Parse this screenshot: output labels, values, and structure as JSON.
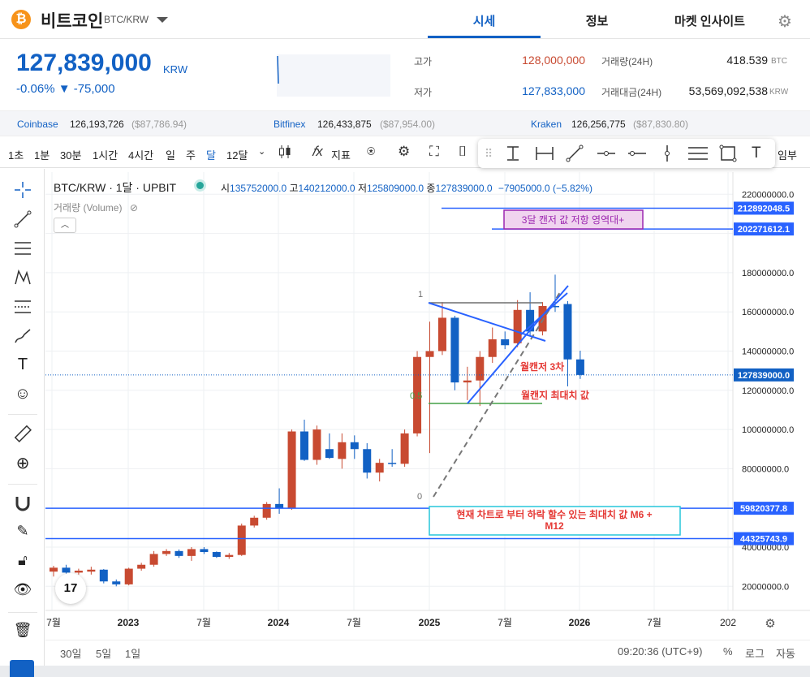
{
  "header": {
    "coin_symbol": "₿",
    "coin_name": "비트코인",
    "pair": "BTC/KRW",
    "tabs": [
      {
        "label": "시세",
        "active": true
      },
      {
        "label": "정보",
        "active": false
      },
      {
        "label": "마켓 인사이트",
        "active": false
      }
    ]
  },
  "price": {
    "current": "127,839,000",
    "unit": "KRW",
    "change": "-0.06% ▼ -75,000"
  },
  "stats": {
    "high_label": "고가",
    "high_value": "128,000,000",
    "low_label": "저가",
    "low_value": "127,833,000",
    "vol_label": "거래량(24H)",
    "vol_value": "418.539",
    "vol_unit": "BTC",
    "amt_label": "거래대금(24H)",
    "amt_value": "53,569,092,538",
    "amt_unit": "KRW"
  },
  "exchanges": [
    {
      "name": "Coinbase",
      "value": "126,193,726",
      "usd": "($87,786.94)"
    },
    {
      "name": "Bitfinex",
      "value": "126,433,875",
      "usd": "($87,954.00)"
    },
    {
      "name": "Kraken",
      "value": "126,256,775",
      "usd": "($87,830.80)"
    }
  ],
  "toolbar": {
    "intervals": [
      "1초",
      "1분",
      "30분",
      "1시간",
      "4시간",
      "일",
      "주",
      "달",
      "12달"
    ],
    "active_interval": "달",
    "indicator_label": "지표",
    "trailing": "임부"
  },
  "chart": {
    "title": "BTC/KRW · 1달 · UPBIT",
    "ohlc_o_label": "시",
    "ohlc_o": "135752000.0",
    "ohlc_h_label": "고",
    "ohlc_h": "140212000.0",
    "ohlc_l_label": "저",
    "ohlc_l": "125809000.0",
    "ohlc_c_label": "종",
    "ohlc_c": "127839000.0",
    "ohlc_change": "−7905000.0 (−5.82%)",
    "volume_label": "거래량 (Volume)",
    "annotations": {
      "resistance_box": "3달 캔저 값 저항 영역대+",
      "low3": "월캔저 3차",
      "max_low": "월캔지 최대치 값",
      "bottom_box": "현재 차트로 부터 하락 할수 있는 최대치 값 M6 + M12",
      "fib_1": "1",
      "fib_05": "0.5",
      "fib_0": "0"
    },
    "x_labels": [
      "7월",
      "2023",
      "7월",
      "2024",
      "7월",
      "2025",
      "7월",
      "2026",
      "7월",
      "202"
    ],
    "price_ticks": [
      "220000000.0",
      "180000000.0",
      "160000000.0",
      "140000000.0",
      "120000000.0",
      "100000000.0",
      "80000000.0",
      "40000000.0",
      "20000000.0"
    ],
    "price_tags": [
      {
        "value": "212892048.5",
        "color": "#2962ff"
      },
      {
        "value": "202271612.1",
        "color": "#2962ff"
      },
      {
        "value": "127839000.0",
        "color": "#1261c4"
      },
      {
        "value": "59820377.8",
        "color": "#2962ff"
      },
      {
        "value": "44325743.9",
        "color": "#2962ff"
      }
    ]
  },
  "chart_data": {
    "type": "candlestick",
    "title": "BTC/KRW · 1달 · UPBIT",
    "colors": {
      "up": "#c84a31",
      "down": "#1261c4"
    },
    "ylim": [
      0,
      230000000
    ],
    "candles": [
      {
        "o": 27500000,
        "h": 30500000,
        "l": 25000000,
        "c": 29500000
      },
      {
        "o": 29500000,
        "h": 31000000,
        "l": 26500000,
        "c": 27000000
      },
      {
        "o": 27000000,
        "h": 29000000,
        "l": 26000000,
        "c": 28000000
      },
      {
        "o": 27500000,
        "h": 30000000,
        "l": 26000000,
        "c": 28500000
      },
      {
        "o": 28500000,
        "h": 28800000,
        "l": 21500000,
        "c": 22500000
      },
      {
        "o": 22500000,
        "h": 23500000,
        "l": 20000000,
        "c": 21000000
      },
      {
        "o": 21000000,
        "h": 29500000,
        "l": 20500000,
        "c": 29000000
      },
      {
        "o": 29000000,
        "h": 32000000,
        "l": 28000000,
        "c": 31000000
      },
      {
        "o": 31000000,
        "h": 38000000,
        "l": 30000000,
        "c": 36500000
      },
      {
        "o": 36500000,
        "h": 39000000,
        "l": 35500000,
        "c": 38000000
      },
      {
        "o": 38000000,
        "h": 38800000,
        "l": 34500000,
        "c": 35500000
      },
      {
        "o": 35500000,
        "h": 40000000,
        "l": 33000000,
        "c": 39000000
      },
      {
        "o": 39000000,
        "h": 40000000,
        "l": 36500000,
        "c": 37500000
      },
      {
        "o": 37500000,
        "h": 37800000,
        "l": 34500000,
        "c": 35000000
      },
      {
        "o": 35000000,
        "h": 37000000,
        "l": 34000000,
        "c": 36000000
      },
      {
        "o": 36000000,
        "h": 52000000,
        "l": 35500000,
        "c": 51000000
      },
      {
        "o": 51000000,
        "h": 56000000,
        "l": 50000000,
        "c": 55000000
      },
      {
        "o": 55000000,
        "h": 63000000,
        "l": 54000000,
        "c": 62000000
      },
      {
        "o": 62000000,
        "h": 70000000,
        "l": 57000000,
        "c": 60000000
      },
      {
        "o": 60000000,
        "h": 100000000,
        "l": 59000000,
        "c": 99000000
      },
      {
        "o": 99000000,
        "h": 105000000,
        "l": 84000000,
        "c": 84500000
      },
      {
        "o": 84500000,
        "h": 102000000,
        "l": 82000000,
        "c": 100000000
      },
      {
        "o": 90000000,
        "h": 98000000,
        "l": 85000000,
        "c": 85500000
      },
      {
        "o": 85000000,
        "h": 98000000,
        "l": 80000000,
        "c": 93500000
      },
      {
        "o": 93500000,
        "h": 97000000,
        "l": 85000000,
        "c": 90000000
      },
      {
        "o": 90000000,
        "h": 93000000,
        "l": 75000000,
        "c": 78000000
      },
      {
        "o": 78000000,
        "h": 85000000,
        "l": 73500000,
        "c": 83000000
      },
      {
        "o": 83000000,
        "h": 90000000,
        "l": 81000000,
        "c": 82500000
      },
      {
        "o": 82500000,
        "h": 100000000,
        "l": 81000000,
        "c": 98000000
      },
      {
        "o": 98000000,
        "h": 140000000,
        "l": 96500000,
        "c": 137000000
      },
      {
        "o": 137000000,
        "h": 155000000,
        "l": 88000000,
        "c": 140000000
      },
      {
        "o": 140000000,
        "h": 165000000,
        "l": 138000000,
        "c": 157000000
      },
      {
        "o": 157000000,
        "h": 158000000,
        "l": 120000000,
        "c": 124000000
      },
      {
        "o": 124000000,
        "h": 132000000,
        "l": 115000000,
        "c": 125000000
      },
      {
        "o": 125000000,
        "h": 140000000,
        "l": 112000000,
        "c": 137000000
      },
      {
        "o": 137000000,
        "h": 152000000,
        "l": 134000000,
        "c": 146000000
      },
      {
        "o": 146000000,
        "h": 150000000,
        "l": 141000000,
        "c": 143000000
      },
      {
        "o": 144000000,
        "h": 166000000,
        "l": 142000000,
        "c": 161000000
      },
      {
        "o": 161000000,
        "h": 170000000,
        "l": 148000000,
        "c": 150000000
      },
      {
        "o": 150000000,
        "h": 165000000,
        "l": 148000000,
        "c": 163000000
      },
      {
        "o": 163000000,
        "h": 179000000,
        "l": 160000000,
        "c": 162500000
      },
      {
        "o": 164000000,
        "h": 165500000,
        "l": 122000000,
        "c": 135752000
      },
      {
        "o": 135752000,
        "h": 140212000,
        "l": 125809000,
        "c": 127839000
      }
    ],
    "horizontal_lines": [
      212892048.5,
      202271612.1,
      59820377.8,
      44325743.9
    ],
    "current_price_line": 127839000
  },
  "bottom_bar": {
    "ranges": [
      "30일",
      "5일",
      "1일"
    ],
    "time": "09:20:36 (UTC+9)",
    "percent": "%",
    "log": "로그",
    "auto": "자동"
  },
  "icons": {
    "trendline": "trendline-icon",
    "settings": "gear-icon",
    "screenshot": "camera-icon"
  }
}
